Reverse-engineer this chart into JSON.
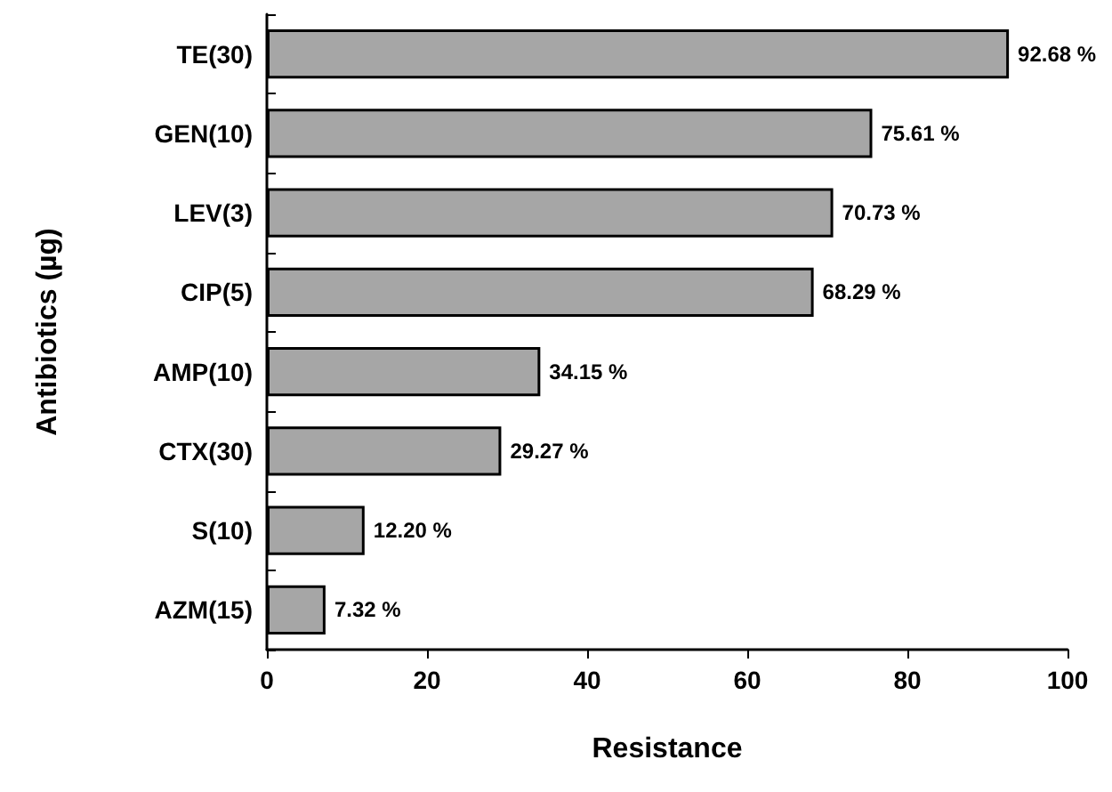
{
  "chart_data": {
    "type": "bar",
    "orientation": "horizontal",
    "xlabel": "Resistance",
    "ylabel": "Antibiotics (µg)",
    "categories": [
      "TE(30)",
      "GEN(10)",
      "LEV(3)",
      "CIP(5)",
      "AMP(10)",
      "CTX(30)",
      "S(10)",
      "AZM(15)"
    ],
    "values": [
      92.68,
      75.61,
      70.73,
      68.29,
      34.15,
      29.27,
      12.2,
      7.32
    ],
    "value_labels": [
      "92.68 %",
      "75.61 %",
      "70.73 %",
      "68.29 %",
      "34.15 %",
      "29.27 %",
      "12.20 %",
      "7.32 %"
    ],
    "color": "#a6a6a6",
    "xlim": [
      0,
      100
    ],
    "xticks": [
      0,
      20,
      40,
      60,
      80,
      100
    ],
    "grid": false
  }
}
